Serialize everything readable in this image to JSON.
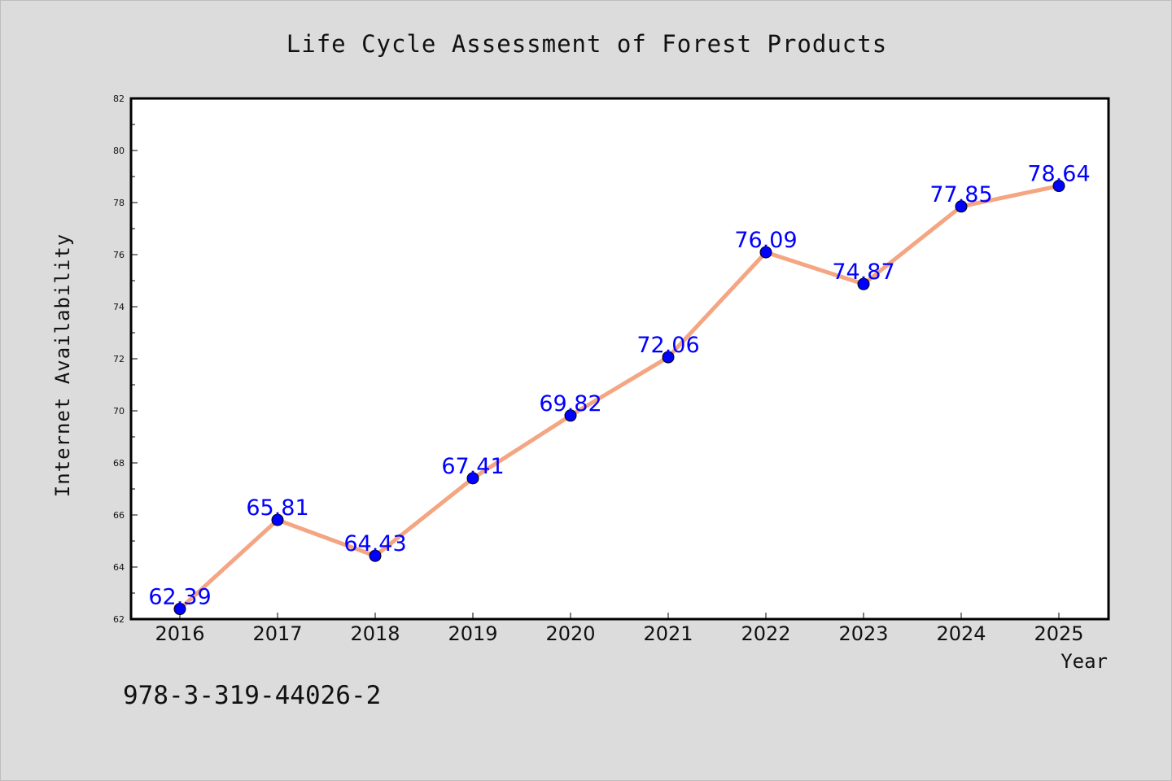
{
  "chart_data": {
    "type": "line",
    "title": "Life Cycle Assessment of Forest Products",
    "xlabel": "Year",
    "ylabel": "Internet Availability",
    "categories": [
      "2016",
      "2017",
      "2018",
      "2019",
      "2020",
      "2021",
      "2022",
      "2023",
      "2024",
      "2025"
    ],
    "values": [
      62.39,
      65.81,
      64.43,
      67.41,
      69.82,
      72.06,
      76.09,
      74.87,
      77.85,
      78.64
    ],
    "data_labels": [
      "62.39",
      "65.81",
      "64.43",
      "67.41",
      "69.82",
      "72.06",
      "76.09",
      "74.87",
      "77.85",
      "78.64"
    ],
    "ylim": [
      62,
      82
    ],
    "yticks": [
      62,
      64,
      66,
      68,
      70,
      72,
      74,
      76,
      78,
      80,
      82
    ],
    "grid": false,
    "legend": "none",
    "line_color": "#f4a582",
    "marker_color": "#0000ff",
    "label_color": "#0000ff"
  },
  "footnote": "978-3-319-44026-2"
}
